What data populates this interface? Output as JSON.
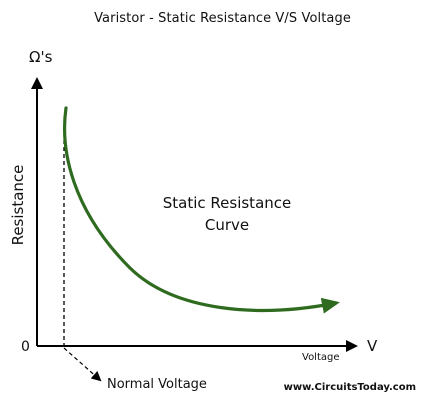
{
  "title": "Varistor - Static Resistance V/S Voltage",
  "y_axis": {
    "unit_label": "Ω's",
    "label": "Resistance",
    "origin_label": "0"
  },
  "x_axis": {
    "unit_label": "V",
    "label": "Voltage"
  },
  "curve": {
    "label_line1": "Static Resistance",
    "label_line2": "Curve",
    "color": "#2e6b1f"
  },
  "annotation": {
    "label": "Normal Voltage"
  },
  "watermark": "www.CircuitsToday.com"
}
